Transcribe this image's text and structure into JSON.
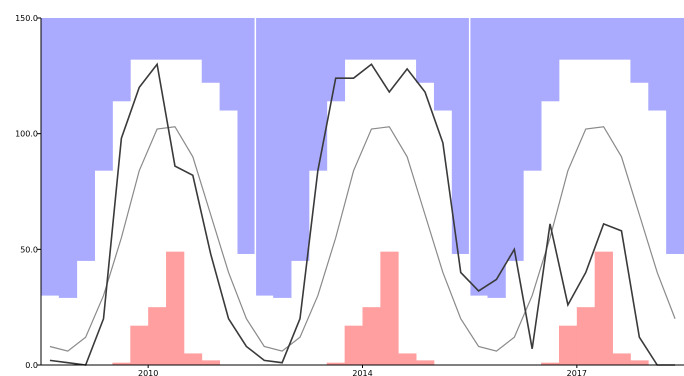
{
  "chart_data": {
    "type": "area",
    "title": "",
    "xlabel": "",
    "ylabel": "",
    "ylim": [
      0,
      150
    ],
    "grid": false,
    "legend": "none",
    "x_labels": [
      "2010",
      "2014",
      "2017"
    ],
    "y_ticks": [
      0,
      50,
      100,
      150
    ],
    "y_tick_labels": [
      "0.0",
      "50.0",
      "100.0",
      "150.0"
    ],
    "x": [
      1,
      2,
      3,
      4,
      5,
      6,
      7,
      8,
      9,
      10,
      11,
      12,
      13,
      14,
      15,
      16,
      17,
      18,
      19,
      20,
      21,
      22,
      23,
      24,
      25,
      26,
      27,
      28,
      29,
      30,
      31,
      32,
      33,
      34,
      35,
      36
    ],
    "series": [
      {
        "role": "upper-band-bottom",
        "color": "#aaaaff",
        "values": [
          30,
          29,
          45,
          84,
          114,
          132,
          132,
          132,
          132,
          122,
          110,
          48,
          30,
          29,
          45,
          84,
          114,
          132,
          132,
          132,
          132,
          122,
          110,
          48,
          30,
          29,
          45,
          84,
          114,
          132,
          132,
          132,
          132,
          122,
          110,
          48
        ]
      },
      {
        "role": "histogram",
        "color": "#ff9f9f",
        "values": [
          0,
          0,
          0,
          0,
          1,
          17,
          25,
          49,
          5,
          2,
          0,
          0,
          0,
          0,
          0,
          0,
          1,
          17,
          25,
          49,
          5,
          2,
          0,
          0,
          0,
          0,
          0,
          0,
          1,
          17,
          25,
          49,
          5,
          2,
          0,
          0
        ]
      },
      {
        "role": "climatology-line",
        "color": "#8a8a8a",
        "values": [
          8,
          6,
          12,
          30,
          55,
          84,
          102,
          103,
          90,
          65,
          40,
          20,
          8,
          6,
          12,
          30,
          55,
          84,
          102,
          103,
          90,
          65,
          40,
          20,
          8,
          6,
          12,
          30,
          55,
          84,
          102,
          103,
          90,
          65,
          40,
          20
        ]
      },
      {
        "role": "observed-line",
        "color": "#3a3a3a",
        "values": [
          2,
          1,
          0,
          20,
          98,
          120,
          130,
          86,
          82,
          48,
          20,
          8,
          2,
          1,
          20,
          84,
          124,
          124,
          130,
          118,
          128,
          118,
          96,
          40,
          32,
          37,
          50,
          7,
          61,
          26,
          40,
          61,
          58,
          12,
          0,
          0
        ]
      }
    ]
  }
}
